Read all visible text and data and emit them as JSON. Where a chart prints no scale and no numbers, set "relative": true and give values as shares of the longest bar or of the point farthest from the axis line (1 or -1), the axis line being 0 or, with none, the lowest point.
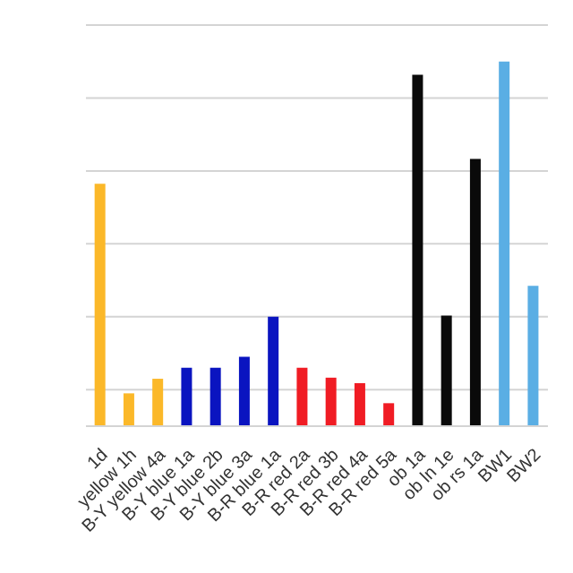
{
  "chart_data": {
    "type": "bar",
    "relative": true,
    "grid": "y",
    "categories": [
      "1d",
      "yellow 1h",
      "B-Y yellow 4a",
      "B-Y blue 1a",
      "B-Y blue 2b",
      "B-Y blue 3a",
      "B-R blue 1a",
      "B-R red 2a",
      "B-R red 3b",
      "B-R red 4a",
      "B-R red 5a",
      "ob 1a",
      "ob ln 1e",
      "ob rs 1a",
      "BW1",
      "BW2"
    ],
    "values": [
      0.665,
      0.09,
      0.13,
      0.16,
      0.16,
      0.19,
      0.3,
      0.16,
      0.133,
      0.118,
      0.063,
      0.964,
      0.303,
      0.733,
      1,
      0.385
    ],
    "colors": [
      "#fbb829",
      "#fbb829",
      "#fbb829",
      "#0a14c0",
      "#0a14c0",
      "#0a14c0",
      "#0a14c0",
      "#f01c24",
      "#f01c24",
      "#f01c24",
      "#f01c24",
      "#0a0a0a",
      "#0a0a0a",
      "#0a0a0a",
      "#5aaee4",
      "#5aaee4"
    ]
  }
}
